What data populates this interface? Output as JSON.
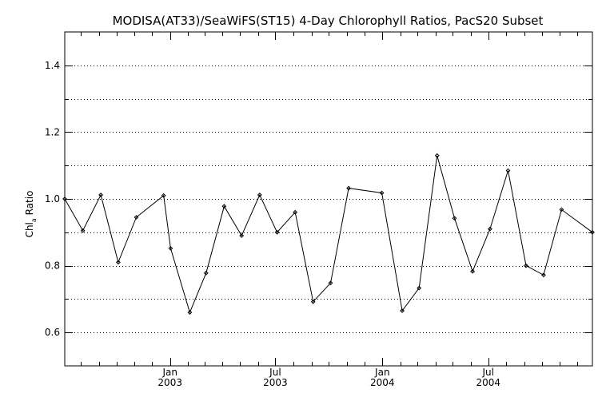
{
  "chart_data": {
    "type": "line",
    "title": "MODISA(AT33)/SeaWiFS(ST15) 4-Day Chlorophyll Ratios, PacS20 Subset",
    "ylabel": {
      "main": "Chl",
      "sub": "a",
      "rest": " Ratio"
    },
    "xlabel": "",
    "ylim": [
      0.5,
      1.5
    ],
    "y_ticks": [
      0.6,
      0.8,
      1.0,
      1.2,
      1.4
    ],
    "y_tick_labels": [
      "0.6",
      "0.8",
      "1.0",
      "1.2",
      "1.4"
    ],
    "y_gridlines": [
      0.6,
      0.7,
      0.8,
      0.9,
      1.0,
      1.1,
      1.2,
      1.3,
      1.4
    ],
    "grid": "horizontal dotted",
    "xlim": [
      "2002-07-04",
      "2004-12-27"
    ],
    "x_ticks": [
      {
        "date": "2003-01-01",
        "line1": "Jan",
        "line2": "2003"
      },
      {
        "date": "2003-07-01",
        "line1": "Jul",
        "line2": "2003"
      },
      {
        "date": "2004-01-01",
        "line1": "Jan",
        "line2": "2004"
      },
      {
        "date": "2004-07-01",
        "line1": "Jul",
        "line2": "2004"
      }
    ],
    "x_minor_ticks": [
      "2002-08-01",
      "2002-09-01",
      "2002-10-01",
      "2002-11-01",
      "2002-12-01",
      "2003-02-01",
      "2003-03-01",
      "2003-04-01",
      "2003-05-01",
      "2003-06-01",
      "2003-08-01",
      "2003-09-01",
      "2003-10-01",
      "2003-11-01",
      "2003-12-01",
      "2004-02-01",
      "2004-03-01",
      "2004-04-01",
      "2004-05-01",
      "2004-06-01",
      "2004-08-01",
      "2004-09-01",
      "2004-10-01",
      "2004-11-01",
      "2004-12-01"
    ],
    "series": [
      {
        "color": "#000000",
        "marker": "diamond",
        "points": [
          {
            "x": "2002-07-04",
            "y": 1.0
          },
          {
            "x": "2002-08-04",
            "y": 0.905
          },
          {
            "x": "2002-09-04",
            "y": 1.012
          },
          {
            "x": "2002-10-04",
            "y": 0.81
          },
          {
            "x": "2002-11-04",
            "y": 0.945
          },
          {
            "x": "2002-12-21",
            "y": 1.01
          },
          {
            "x": "2003-01-02",
            "y": 0.852
          },
          {
            "x": "2003-02-04",
            "y": 0.66
          },
          {
            "x": "2003-03-04",
            "y": 0.778
          },
          {
            "x": "2003-04-04",
            "y": 0.978
          },
          {
            "x": "2003-05-04",
            "y": 0.89
          },
          {
            "x": "2003-06-04",
            "y": 1.012
          },
          {
            "x": "2003-07-04",
            "y": 0.9
          },
          {
            "x": "2003-08-04",
            "y": 0.96
          },
          {
            "x": "2003-09-04",
            "y": 0.692
          },
          {
            "x": "2003-10-04",
            "y": 0.748
          },
          {
            "x": "2003-11-04",
            "y": 1.032
          },
          {
            "x": "2003-12-31",
            "y": 1.018
          },
          {
            "x": "2004-02-04",
            "y": 0.665
          },
          {
            "x": "2004-03-04",
            "y": 0.733
          },
          {
            "x": "2004-04-04",
            "y": 1.13
          },
          {
            "x": "2004-05-04",
            "y": 0.942
          },
          {
            "x": "2004-06-04",
            "y": 0.783
          },
          {
            "x": "2004-07-04",
            "y": 0.91
          },
          {
            "x": "2004-08-04",
            "y": 1.085
          },
          {
            "x": "2004-09-04",
            "y": 0.8
          },
          {
            "x": "2004-10-04",
            "y": 0.772
          },
          {
            "x": "2004-11-04",
            "y": 0.968
          },
          {
            "x": "2004-12-27",
            "y": 0.9
          }
        ]
      }
    ]
  }
}
